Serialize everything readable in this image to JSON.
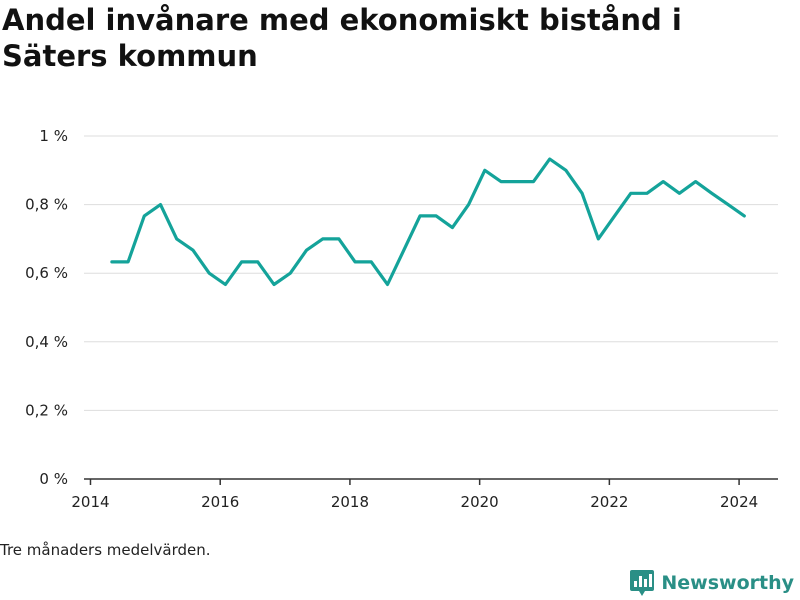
{
  "title": "Andel invånare med ekonomiskt bistånd i Säters kommun",
  "footnote": "Tre månaders medelvärden.",
  "brand": {
    "name": "Newsworthy",
    "icon": "newsworthy-logo-icon",
    "color": "#2a8f86"
  },
  "colors": {
    "line": "#14a39a",
    "grid": "#dddddd",
    "axis": "#333333"
  },
  "chart_data": {
    "type": "line",
    "title": "Andel invånare med ekonomiskt bistånd i Säters kommun",
    "xlabel": "",
    "ylabel": "",
    "xlim": [
      2013.9,
      2024.6
    ],
    "ylim": [
      0,
      1
    ],
    "grid": true,
    "yticks": [
      {
        "value": 0,
        "label": "0 %"
      },
      {
        "value": 0.2,
        "label": "0,2 %"
      },
      {
        "value": 0.4,
        "label": "0,4 %"
      },
      {
        "value": 0.6,
        "label": "0,6 %"
      },
      {
        "value": 0.8,
        "label": "0,8 %"
      },
      {
        "value": 1,
        "label": "1 %"
      }
    ],
    "xticks": [
      {
        "value": 2014,
        "label": "2014"
      },
      {
        "value": 2016,
        "label": "2016"
      },
      {
        "value": 2018,
        "label": "2018"
      },
      {
        "value": 2020,
        "label": "2020"
      },
      {
        "value": 2022,
        "label": "2022"
      },
      {
        "value": 2024,
        "label": "2024"
      }
    ],
    "series": [
      {
        "x": [
          2014.33,
          2014.58,
          2014.83,
          2015.08,
          2015.33,
          2015.58,
          2015.83,
          2016.08,
          2016.33,
          2016.58,
          2016.83,
          2017.08,
          2017.33,
          2017.58,
          2017.83,
          2018.08,
          2018.33,
          2018.58,
          2018.83,
          2019.08,
          2019.33,
          2019.58,
          2019.83,
          2020.08,
          2020.33,
          2020.58,
          2020.83,
          2021.08,
          2021.33,
          2021.58,
          2021.83,
          2022.08,
          2022.33,
          2022.58,
          2022.83,
          2023.08,
          2023.33,
          2023.58,
          2023.83,
          2024.08
        ],
        "values": [
          0.633,
          0.633,
          0.767,
          0.8,
          0.7,
          0.667,
          0.6,
          0.567,
          0.633,
          0.633,
          0.567,
          0.6,
          0.667,
          0.7,
          0.7,
          0.633,
          0.633,
          0.567,
          0.667,
          0.767,
          0.767,
          0.733,
          0.8,
          0.9,
          0.867,
          0.867,
          0.867,
          0.933,
          0.9,
          0.833,
          0.7,
          0.767,
          0.833,
          0.833,
          0.867,
          0.833,
          0.867,
          0.833,
          0.8,
          0.767
        ]
      }
    ]
  }
}
